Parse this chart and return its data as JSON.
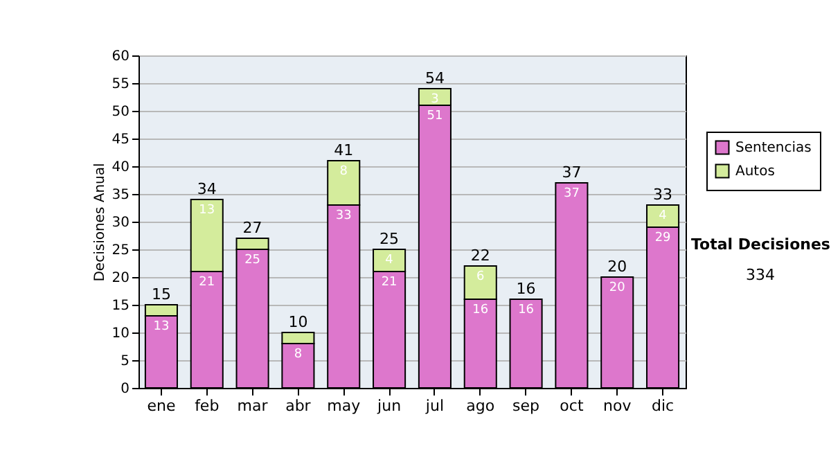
{
  "chart_data": {
    "type": "bar",
    "stacked": true,
    "ylabel": "Decisiones Anual",
    "categories": [
      "ene",
      "feb",
      "mar",
      "abr",
      "may",
      "jun",
      "jul",
      "ago",
      "sep",
      "oct",
      "nov",
      "dic"
    ],
    "series": [
      {
        "name": "Sentencias",
        "color": "#dd77cc",
        "values": [
          13,
          21,
          25,
          8,
          33,
          21,
          51,
          16,
          16,
          37,
          20,
          29
        ],
        "value_labels": [
          "13",
          "21",
          "25",
          "8",
          "33",
          "21",
          "51",
          "16",
          "16",
          "37",
          "20",
          "29"
        ]
      },
      {
        "name": "Autos",
        "color": "#d4ec9c",
        "values": [
          2,
          13,
          2,
          2,
          8,
          4,
          3,
          6,
          0,
          0,
          0,
          4
        ],
        "value_labels": [
          null,
          "13",
          null,
          null,
          "8",
          "4",
          "3",
          "6",
          null,
          null,
          null,
          "4"
        ]
      }
    ],
    "totals": [
      "15",
      "34",
      "27",
      "10",
      "41",
      "25",
      "54",
      "22",
      "16",
      "37",
      "20",
      "33"
    ],
    "ylim": [
      0,
      60
    ],
    "yticks": [
      0,
      5,
      10,
      15,
      20,
      25,
      30,
      35,
      40,
      45,
      50,
      55,
      60
    ],
    "grid": "y",
    "legend": "right",
    "annotations": [
      "Total Decisiones",
      "334"
    ]
  }
}
